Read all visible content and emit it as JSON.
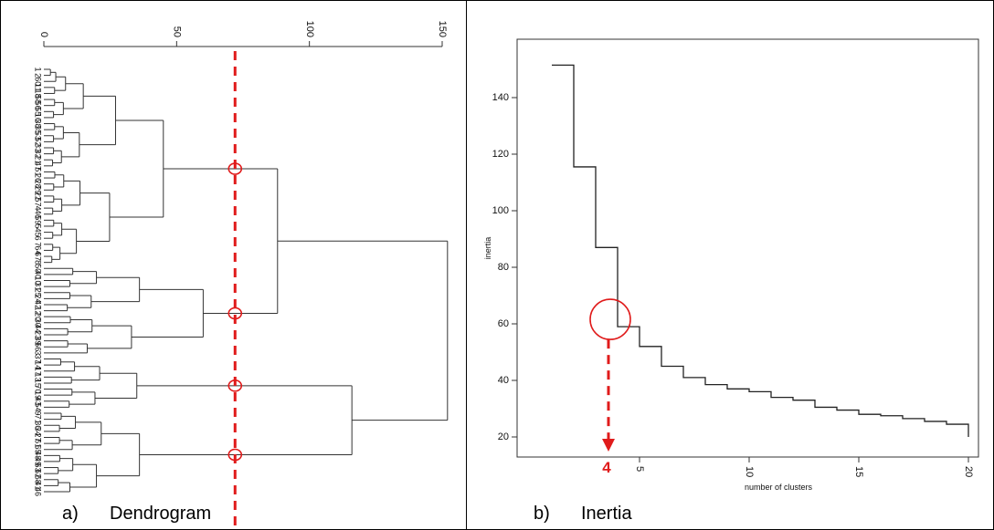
{
  "panels": {
    "a": {
      "letter": "a)",
      "title": "Dendrogram"
    },
    "b": {
      "letter": "b)",
      "title": "Inertia"
    }
  },
  "colors": {
    "annotation": "#e01b1b",
    "line": "#333333",
    "border": "#000000"
  },
  "chart_data": [
    {
      "type": "dendrogram",
      "orientation": "horizontal",
      "height_axis": {
        "ticks": [
          0,
          50,
          100,
          150
        ],
        "range": [
          0,
          150
        ]
      },
      "leaf_labels": [
        "1",
        "2",
        "60",
        "11",
        "18",
        "58",
        "56",
        "55",
        "16",
        "38",
        "35",
        "53",
        "52",
        "33",
        "32",
        "21",
        "47",
        "51",
        "26",
        "28",
        "29",
        "22",
        "57",
        "4",
        "46",
        "59",
        "5",
        "45",
        "6",
        "7",
        "64",
        "67",
        "8",
        "50",
        "40",
        "10",
        "31",
        "25",
        "24",
        "42",
        "12",
        "20",
        "30",
        "44",
        "23",
        "39",
        "66",
        "3",
        "37",
        "14",
        "17",
        "13",
        "15",
        "70",
        "19",
        "43",
        "54",
        "9",
        "71",
        "36",
        "34",
        "27",
        "61",
        "65",
        "48",
        "49",
        "63",
        "62",
        "68",
        "41",
        "46"
      ],
      "cut_height": 72,
      "cut_label": "",
      "clusters_at_cut": 4
    },
    {
      "type": "line",
      "style": "step",
      "xlabel": "number of clusters",
      "ylabel": "inertia",
      "xlim": [
        1,
        20
      ],
      "ylim": [
        15,
        155
      ],
      "xticks": [
        5,
        10,
        15,
        20
      ],
      "yticks": [
        20,
        40,
        60,
        80,
        100,
        120,
        140
      ],
      "series": [
        {
          "x": [
            1,
            2,
            3,
            4,
            5,
            6,
            7,
            8,
            9,
            10,
            11,
            12,
            13,
            14,
            15,
            16,
            17,
            18,
            19,
            20
          ],
          "values": [
            151.5,
            115.5,
            87,
            59,
            52,
            45,
            41,
            38.5,
            37,
            36,
            34,
            33,
            30.5,
            29.5,
            28,
            27.5,
            26.5,
            25.5,
            24.5,
            20
          ]
        }
      ],
      "annotation": {
        "x": 4,
        "label": "4"
      }
    }
  ]
}
